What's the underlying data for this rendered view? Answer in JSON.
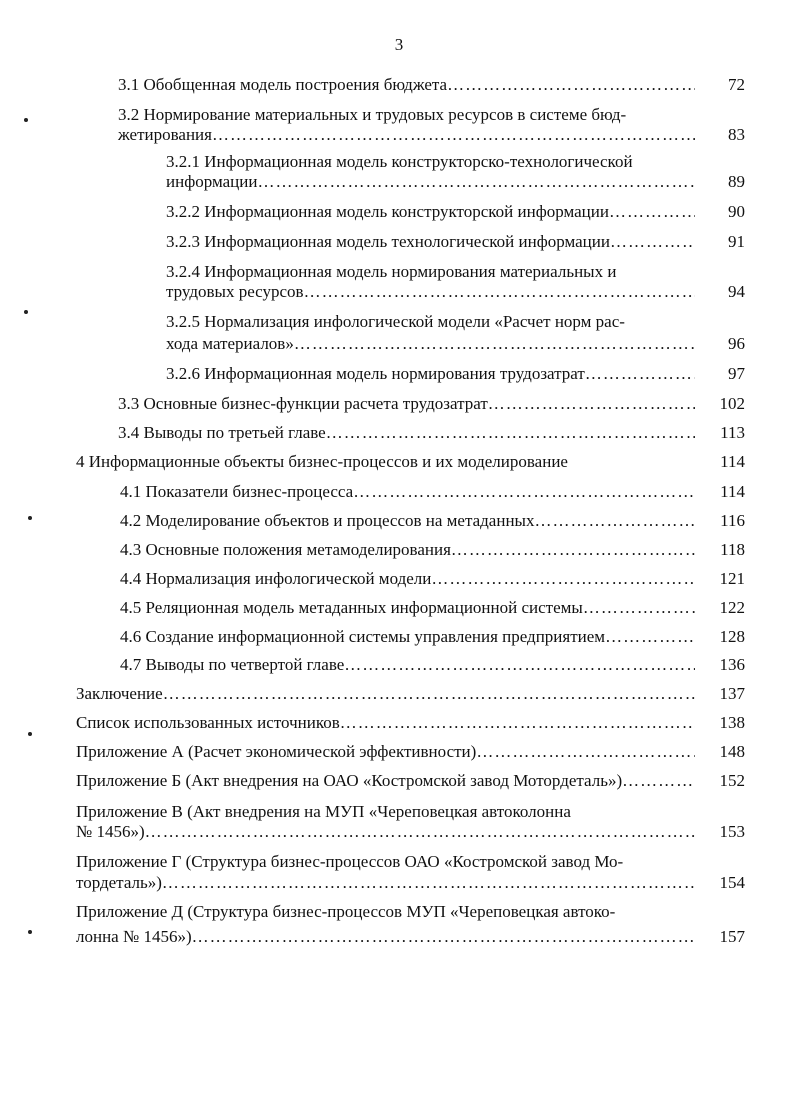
{
  "page_number": "3",
  "entries": [
    {
      "lines": [
        "3.1 Обобщенная модель построения бюджета"
      ],
      "page": "72"
    },
    {
      "lines": [
        "3.2 Нормирование материальных и трудовых ресурсов в системе бюд-",
        "жетирования"
      ],
      "page": "83"
    },
    {
      "lines": [
        "3.2.1 Информационная модель конструкторско-технологической",
        "информации"
      ],
      "page": "89"
    },
    {
      "lines": [
        "3.2.2 Информационная модель конструкторской информации"
      ],
      "page": "90"
    },
    {
      "lines": [
        "3.2.3 Информационная модель технологической информации"
      ],
      "page": "91"
    },
    {
      "lines": [
        "3.2.4 Информационная модель нормирования материальных и",
        "трудовых ресурсов"
      ],
      "page": "94"
    },
    {
      "lines": [
        "3.2.5 Нормализация инфологической модели «Расчет норм рас-",
        "хода материалов»"
      ],
      "page": "96"
    },
    {
      "lines": [
        "3.2.6 Информационная модель нормирования трудозатрат"
      ],
      "page": "97"
    },
    {
      "lines": [
        "3.3 Основные бизнес-функции расчета трудозатрат"
      ],
      "page": "102"
    },
    {
      "lines": [
        "3.4 Выводы по третьей главе"
      ],
      "page": "113"
    },
    {
      "lines": [
        "4 Информационные объекты бизнес-процессов и их моделирование"
      ],
      "page": "114",
      "noleader": true
    },
    {
      "lines": [
        "4.1 Показатели бизнес-процесса"
      ],
      "page": "114"
    },
    {
      "lines": [
        "4.2 Моделирование объектов и процессов на метаданных"
      ],
      "page": "116"
    },
    {
      "lines": [
        "4.3 Основные положения метамоделирования"
      ],
      "page": "118"
    },
    {
      "lines": [
        "4.4 Нормализация инфологической модели"
      ],
      "page": "121"
    },
    {
      "lines": [
        "4.5 Реляционная модель метаданных информационной системы"
      ],
      "page": "122"
    },
    {
      "lines": [
        "4.6 Создание информационной системы управления предприятием"
      ],
      "page": "128"
    },
    {
      "lines": [
        "4.7 Выводы по четвертой главе"
      ],
      "page": "136"
    },
    {
      "lines": [
        "Заключение"
      ],
      "page": "137"
    },
    {
      "lines": [
        "Список использованных источников"
      ],
      "page": "138"
    },
    {
      "lines": [
        "Приложение А (Расчет экономической эффективности)"
      ],
      "page": "148"
    },
    {
      "lines": [
        "Приложение Б (Акт внедрения на ОАО «Костромской завод Мотордеталь»)"
      ],
      "page": "152"
    },
    {
      "lines": [
        "Приложение В (Акт внедрения на МУП «Череповецкая автоколонна",
        "№ 1456»)"
      ],
      "page": "153"
    },
    {
      "lines": [
        "Приложение Г (Структура бизнес-процессов ОАО «Костромской завод Мо-",
        "тордеталь»)"
      ],
      "page": "154"
    },
    {
      "lines": [
        "Приложение Д (Структура бизнес-процессов МУП «Череповецкая автоко-",
        "лонна № 1456»)"
      ],
      "page": "157"
    }
  ]
}
